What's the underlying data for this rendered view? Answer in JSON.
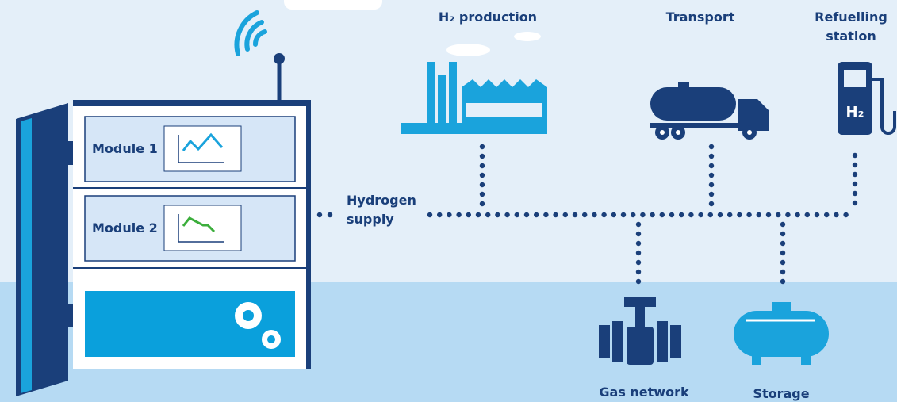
{
  "cabinet": {
    "modules": [
      "Module 1",
      "Module 2"
    ]
  },
  "supply_label": [
    "Hydrogen",
    "supply"
  ],
  "nodes": [
    {
      "label": [
        "H₂ production"
      ]
    },
    {
      "label": [
        "Transport"
      ]
    },
    {
      "label": [
        "Refuelling",
        "station"
      ],
      "icon_text": "H₂"
    },
    {
      "label": [
        "Gas network"
      ]
    },
    {
      "label": [
        "Storage"
      ]
    }
  ]
}
